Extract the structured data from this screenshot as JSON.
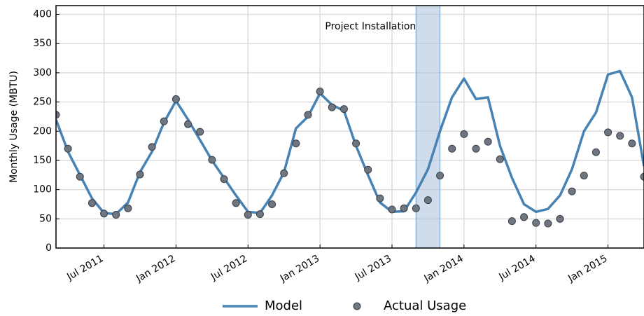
{
  "chart_data": {
    "type": "line",
    "ylabel": "Monthly Usage (MBTU)",
    "x": [
      "2011-03",
      "2011-04",
      "2011-05",
      "2011-06",
      "2011-07",
      "2011-08",
      "2011-09",
      "2011-10",
      "2011-11",
      "2011-12",
      "2012-01",
      "2012-02",
      "2012-03",
      "2012-04",
      "2012-05",
      "2012-06",
      "2012-07",
      "2012-08",
      "2012-09",
      "2012-10",
      "2012-11",
      "2012-12",
      "2013-01",
      "2013-02",
      "2013-03",
      "2013-04",
      "2013-05",
      "2013-06",
      "2013-07",
      "2013-08",
      "2013-09",
      "2013-10",
      "2013-11",
      "2013-12",
      "2014-01",
      "2014-02",
      "2014-03",
      "2014-04",
      "2014-05",
      "2014-06",
      "2014-07",
      "2014-08",
      "2014-09",
      "2014-10",
      "2014-11",
      "2014-12",
      "2015-01",
      "2015-02",
      "2015-03",
      "2015-04"
    ],
    "series": [
      {
        "name": "Model",
        "color": "#4682b4",
        "style": "line",
        "values": [
          220,
          165,
          125,
          85,
          60,
          58,
          78,
          130,
          165,
          215,
          252,
          220,
          185,
          150,
          120,
          90,
          62,
          60,
          90,
          130,
          205,
          225,
          265,
          245,
          235,
          175,
          125,
          78,
          62,
          63,
          95,
          135,
          200,
          258,
          290,
          255,
          258,
          175,
          120,
          75,
          62,
          67,
          90,
          135,
          200,
          232,
          297,
          303,
          258,
          140
        ]
      },
      {
        "name": "Actual Usage",
        "color": "#6e7682",
        "style": "marker",
        "values": [
          228,
          170,
          122,
          77,
          59,
          57,
          68,
          126,
          173,
          217,
          255,
          212,
          199,
          151,
          118,
          77,
          57,
          58,
          75,
          128,
          179,
          228,
          268,
          241,
          238,
          179,
          134,
          85,
          66,
          68,
          68,
          82,
          124,
          170,
          195,
          170,
          182,
          152,
          46,
          53,
          43,
          42,
          50,
          97,
          124,
          164,
          198,
          192,
          179,
          122
        ]
      }
    ],
    "annotation": {
      "text": "Project Installation",
      "span": [
        "2013-09",
        "2013-11"
      ],
      "color": "#b0c4de"
    },
    "xlim": [
      "2011-03",
      "2015-04"
    ],
    "xticks": [
      {
        "value": "2011-07",
        "label": "Jul 2011"
      },
      {
        "value": "2012-01",
        "label": "Jan 2012"
      },
      {
        "value": "2012-07",
        "label": "Jul 2012"
      },
      {
        "value": "2013-01",
        "label": "Jan 2013"
      },
      {
        "value": "2013-07",
        "label": "Jul 2013"
      },
      {
        "value": "2014-01",
        "label": "Jan 2014"
      },
      {
        "value": "2014-07",
        "label": "Jul 2014"
      },
      {
        "value": "2015-01",
        "label": "Jan 2015"
      }
    ],
    "ylim": [
      0,
      415
    ],
    "yticks": [
      0,
      50,
      100,
      150,
      200,
      250,
      300,
      350,
      400
    ],
    "grid": true,
    "legend": "bottom"
  }
}
